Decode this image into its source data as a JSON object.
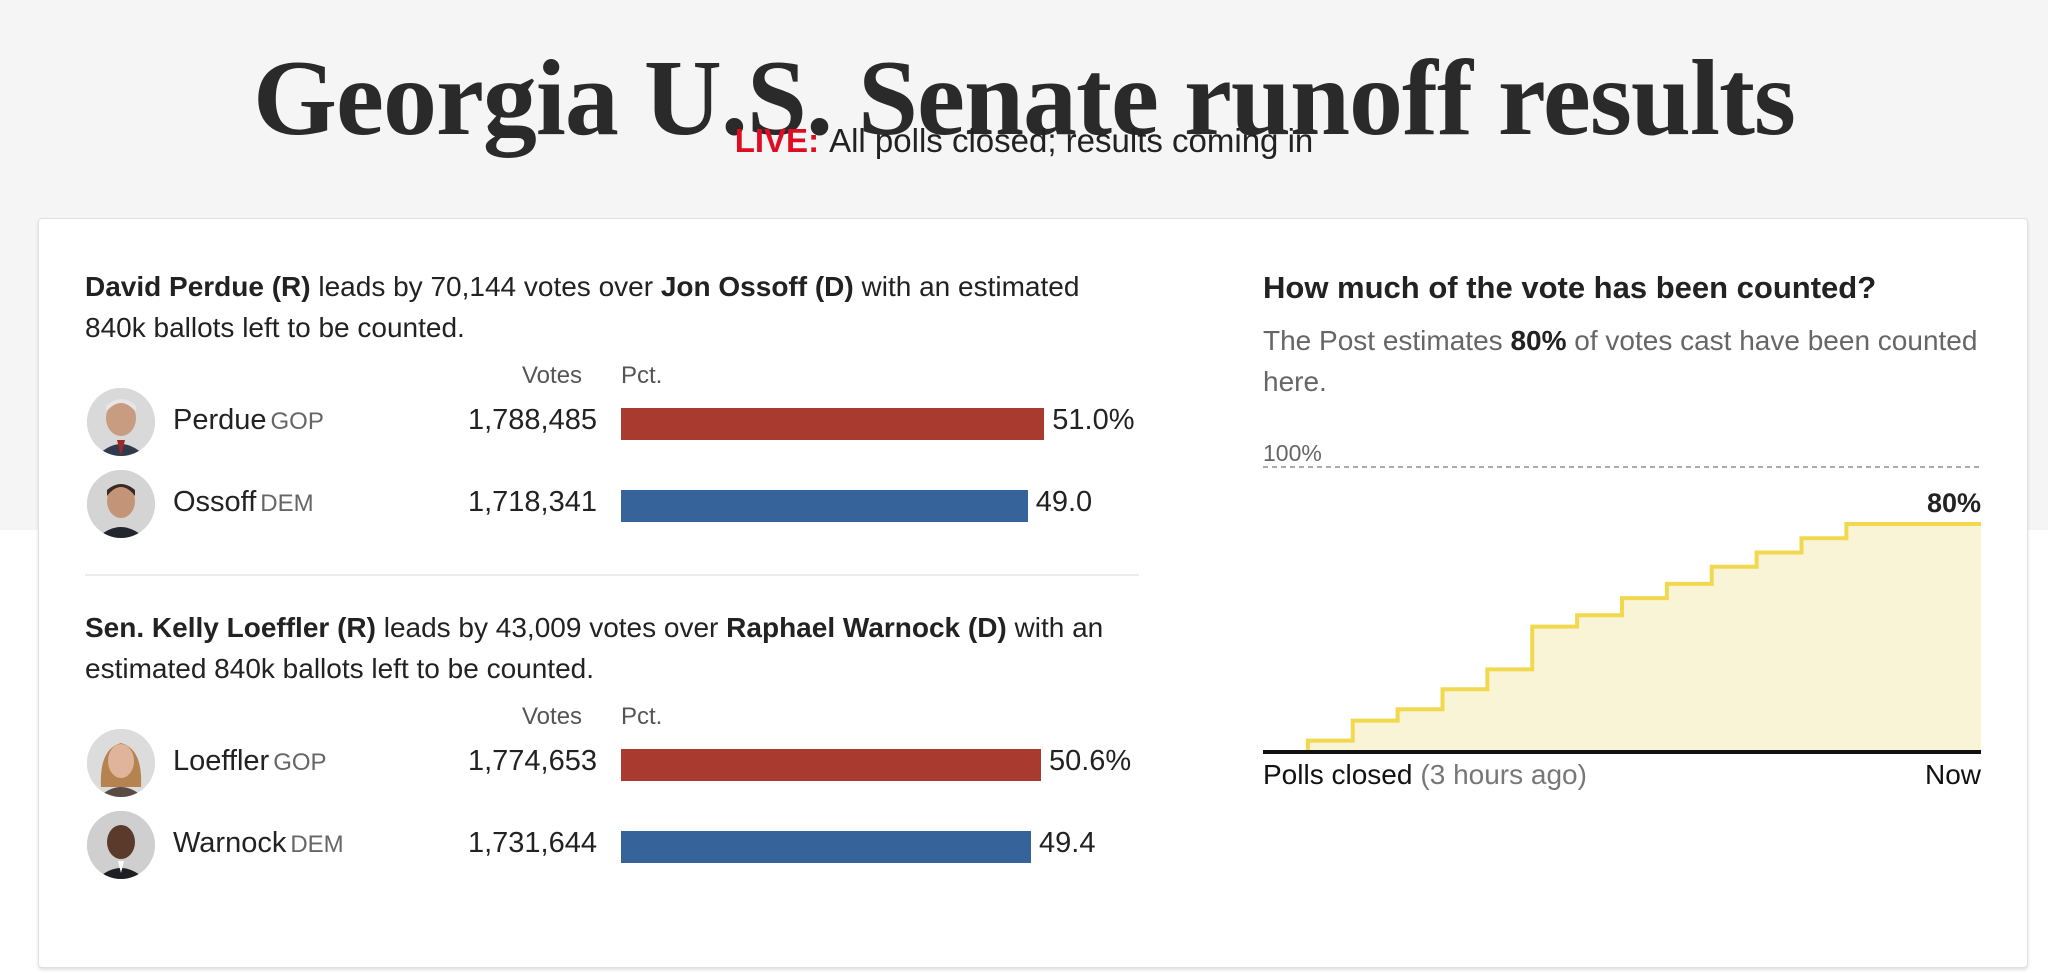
{
  "headline": "Georgia U.S. Senate runoff results",
  "status": {
    "live_label": "LIVE:",
    "text": "All polls closed; results coming in"
  },
  "columns": {
    "votes": "Votes",
    "pct": "Pct."
  },
  "races": [
    {
      "leader": "David Perdue (R)",
      "leads_by_text": "leads by 70,144 votes over",
      "trailer": "Jon Ossoff (D)",
      "remaining_text": "with an estimated 840k ballots left to be counted.",
      "candidates": [
        {
          "name": "Perdue",
          "party": "GOP",
          "votes": "1,788,485",
          "pct_label": "51.0%",
          "pct": 51.0,
          "color": "#a93a30"
        },
        {
          "name": "Ossoff",
          "party": "DEM",
          "votes": "1,718,341",
          "pct_label": "49.0",
          "pct": 49.0,
          "color": "#35639a"
        }
      ]
    },
    {
      "leader": "Sen. Kelly Loeffler (R)",
      "leads_by_text": "leads by 43,009 votes over",
      "trailer": "Raphael Warnock (D)",
      "remaining_text": "with an estimated 840k ballots left to be counted.",
      "candidates": [
        {
          "name": "Loeffler",
          "party": "GOP",
          "votes": "1,774,653",
          "pct_label": "50.6%",
          "pct": 50.6,
          "color": "#a93a30"
        },
        {
          "name": "Warnock",
          "party": "DEM",
          "votes": "1,731,644",
          "pct_label": "49.4",
          "pct": 49.4,
          "color": "#35639a"
        }
      ]
    }
  ],
  "counted": {
    "title": "How much of the vote has been counted?",
    "sub_pre": "The Post estimates",
    "sub_bold": "80%",
    "sub_post": "of votes cast have been counted here.",
    "reference_label": "100%",
    "current_label": "80%",
    "x_start_label": "Polls closed",
    "x_start_note": "(3 hours ago)",
    "x_end_label": "Now"
  },
  "chart_data": [
    {
      "type": "bar",
      "categories": [
        "Perdue",
        "Ossoff"
      ],
      "values": [
        51.0,
        49.0
      ],
      "votes": [
        1788485,
        1718341
      ],
      "colors": [
        "#a93a30",
        "#35639a"
      ]
    },
    {
      "type": "bar",
      "categories": [
        "Loeffler",
        "Warnock"
      ],
      "values": [
        50.6,
        49.4
      ],
      "votes": [
        1774653,
        1731644
      ],
      "colors": [
        "#a93a30",
        "#35639a"
      ]
    },
    {
      "type": "area",
      "x": [
        0,
        1,
        2,
        3,
        4,
        5,
        6,
        7,
        8,
        9,
        10,
        11,
        12,
        13,
        14,
        15,
        16
      ],
      "y": [
        0,
        4,
        11,
        15,
        22,
        29,
        44,
        48,
        54,
        59,
        65,
        70,
        75,
        80,
        80,
        80,
        80
      ],
      "ylim": [
        0,
        100
      ],
      "reference_line": 100,
      "x_labels": [
        "Polls closed (3 hours ago)",
        "Now"
      ],
      "colors": {
        "line": "#f2d84f",
        "fill": "#faf4d6",
        "axis": "#111111"
      }
    }
  ]
}
